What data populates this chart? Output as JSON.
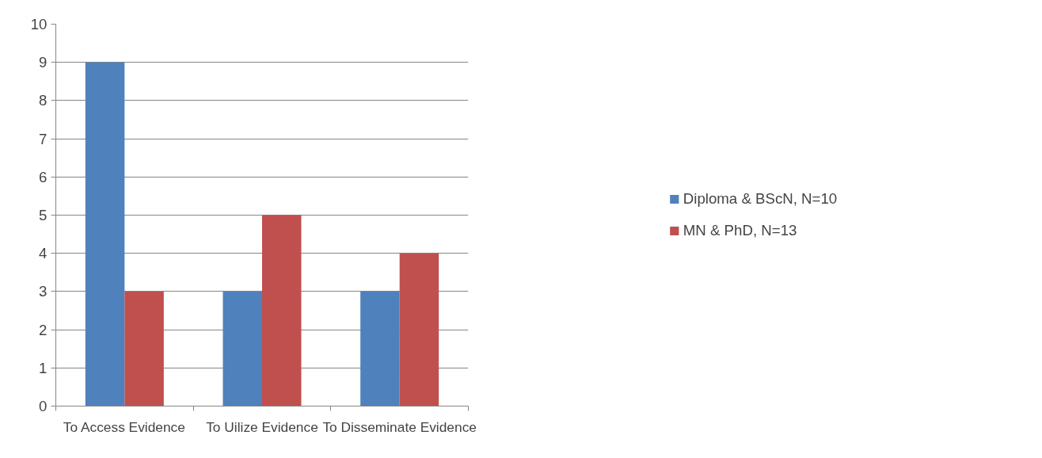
{
  "chart_data": {
    "type": "bar",
    "categories": [
      "To Access Evidence",
      "To Uilize Evidence",
      "To Disseminate Evidence"
    ],
    "series": [
      {
        "name": "Diploma & BScN, N=10",
        "color": "#4f81bd",
        "values": [
          9,
          3,
          3
        ]
      },
      {
        "name": "MN & PhD, N=13",
        "color": "#c0504d",
        "values": [
          3,
          5,
          4
        ]
      }
    ],
    "ylim": [
      0,
      10
    ],
    "yticks": [
      0,
      1,
      2,
      3,
      4,
      5,
      6,
      7,
      8,
      9,
      10
    ],
    "grid": "y",
    "legend": "right"
  }
}
